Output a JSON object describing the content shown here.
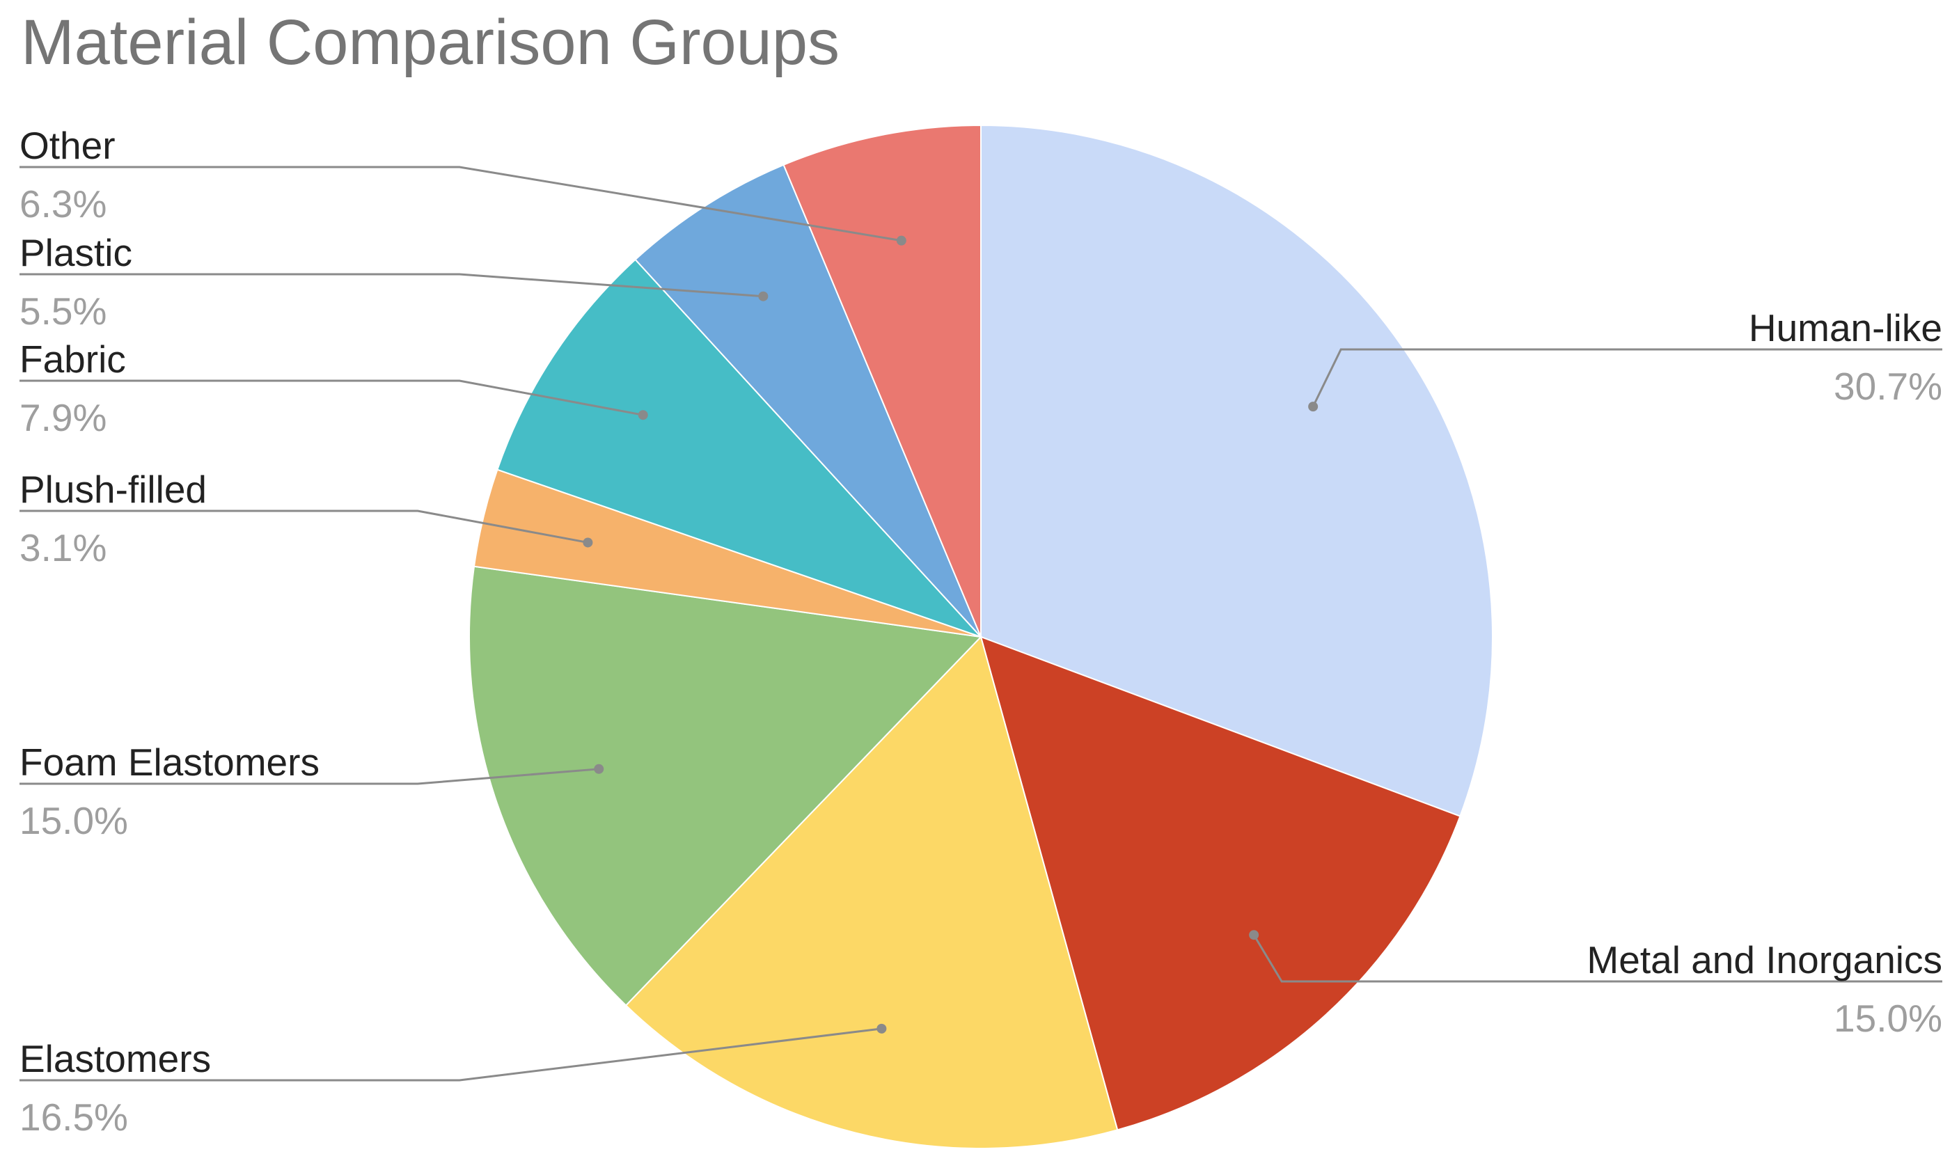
{
  "chart_data": {
    "type": "pie",
    "title": "Material Comparison Groups",
    "legend": "labels with leader lines",
    "slices": [
      {
        "label": "Human-like",
        "value": 30.7,
        "display": "30.7%",
        "color": "#c9daf8"
      },
      {
        "label": "Metal and Inorganics",
        "value": 15.0,
        "display": "15.0%",
        "color": "#cc4125"
      },
      {
        "label": "Elastomers",
        "value": 16.5,
        "display": "16.5%",
        "color": "#fcd866"
      },
      {
        "label": "Foam Elastomers",
        "value": 15.0,
        "display": "15.0%",
        "color": "#93c47d"
      },
      {
        "label": "Plush-filled",
        "value": 3.1,
        "display": "3.1%",
        "color": "#f6b26b"
      },
      {
        "label": "Fabric",
        "value": 7.9,
        "display": "7.9%",
        "color": "#46bdc6"
      },
      {
        "label": "Plastic",
        "value": 5.5,
        "display": "5.5%",
        "color": "#6fa8dc"
      },
      {
        "label": "Other",
        "value": 6.3,
        "display": "6.3%",
        "color": "#ea7870"
      }
    ]
  }
}
